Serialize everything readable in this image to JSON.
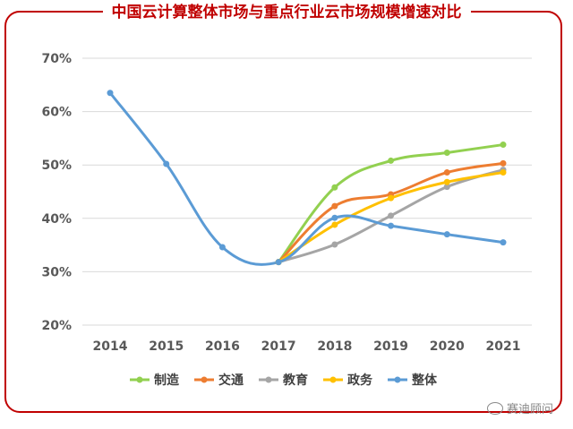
{
  "chart_data": {
    "type": "line",
    "title": "中国云计算整体市场与重点行业云市场规模增速对比",
    "xlabel": "",
    "ylabel": "",
    "categories": [
      "2014",
      "2015",
      "2016",
      "2017",
      "2018",
      "2019",
      "2020",
      "2021"
    ],
    "yticks": [
      "20%",
      "30%",
      "40%",
      "50%",
      "60%",
      "70%"
    ],
    "ylim": [
      20,
      70
    ],
    "legend_position": "bottom",
    "grid": true,
    "series": [
      {
        "name": "制造",
        "color": "#92d050",
        "values": [
          null,
          null,
          null,
          31.8,
          45.8,
          50.8,
          52.3,
          53.8
        ]
      },
      {
        "name": "交通",
        "color": "#ed7d31",
        "values": [
          null,
          null,
          null,
          31.8,
          42.3,
          44.5,
          48.6,
          50.3
        ]
      },
      {
        "name": "教育",
        "color": "#a5a5a5",
        "values": [
          null,
          null,
          null,
          31.8,
          35.1,
          40.5,
          45.9,
          49.1
        ]
      },
      {
        "name": "政务",
        "color": "#ffc000",
        "values": [
          null,
          null,
          null,
          31.8,
          38.8,
          43.8,
          46.8,
          48.6
        ]
      },
      {
        "name": "整体",
        "color": "#5b9bd5",
        "values": [
          63.5,
          50.2,
          34.6,
          31.8,
          40.1,
          38.6,
          37.0,
          35.5
        ]
      }
    ]
  },
  "watermark": "赛迪顾问",
  "frame_color": "#c00000"
}
